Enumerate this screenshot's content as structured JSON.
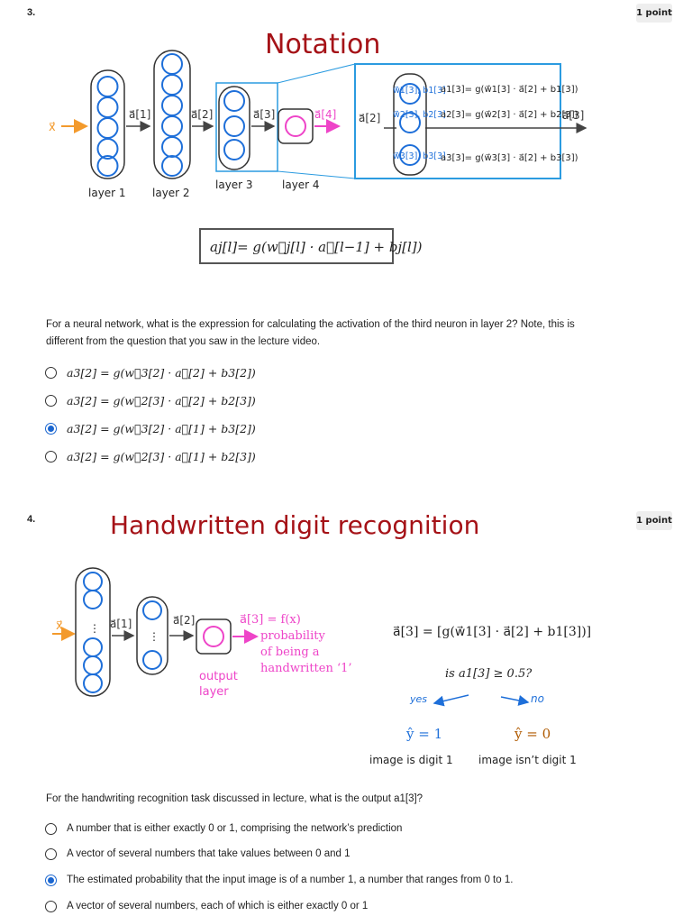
{
  "q3": {
    "number": "3.",
    "points": "1 point",
    "slide_title": "Notation",
    "diagram": {
      "input": "x⃗",
      "arrow_labels": [
        "a⃗[1]",
        "a⃗[2]",
        "a⃗[3]",
        "a⃗[4]"
      ],
      "layer_labels": [
        "layer 1",
        "layer 2",
        "layer 3",
        "layer 4"
      ],
      "zoom_left_label": "a⃗[2]",
      "zoom_right_label": "a⃗[3]",
      "params": [
        "w⃗1[3], b1[3]",
        "w⃗2[3], b2[3]",
        "w⃗3[3], b3[3]"
      ],
      "equations": [
        "a1[3]= g(w⃗1[3] · a⃗[2] + b1[3])",
        "a2[3]= g(w⃗2[3] · a⃗[2] + b2[3])",
        "a3[3]= g(w⃗3[3] · a⃗[2] + b3[3])"
      ],
      "general_formula": "aj[l]= g(w⃗j[l] · a⃗[l−1] + bj[l])"
    },
    "prompt": "For a neural network, what is the expression for calculating the activation of the third neuron in layer 2? Note, this is different from the question that you saw in the lecture video.",
    "options": [
      {
        "text": "a3[2] = g(w⃗3[2] · a⃗[2] + b3[2])",
        "selected": false
      },
      {
        "text": "a3[2] = g(w⃗2[3] · a⃗[2] + b2[3])",
        "selected": false
      },
      {
        "text": "a3[2] = g(w⃗3[2] · a⃗[1] + b3[2])",
        "selected": true
      },
      {
        "text": "a3[2] = g(w⃗2[3] · a⃗[1] + b2[3])",
        "selected": false
      }
    ]
  },
  "q4": {
    "number": "4.",
    "points": "1 point",
    "slide_title": "Handwritten digit recognition",
    "diagram": {
      "input": "x⃗",
      "arrow_labels": [
        "a⃗[1]",
        "a⃗[2]"
      ],
      "output_label": "a⃗[3] = f(x)",
      "prob_lines": [
        "probability",
        "of being a",
        "handwritten ‘1’"
      ],
      "output_layer_lines": [
        "output",
        "layer"
      ],
      "formula": "a⃗[3] = [g(w⃗1[3] · a⃗[2] + b1[3])]",
      "question": "is a1[3] ≥ 0.5?",
      "yes": "yes",
      "no": "no",
      "yhat_yes": "ŷ = 1",
      "yhat_no": "ŷ = 0",
      "caption_yes": "image is digit 1",
      "caption_no": "image isn’t digit 1"
    },
    "prompt": "For the handwriting recognition task discussed in lecture, what is the output a1[3]?",
    "options": [
      {
        "text": "A number that is either exactly 0 or 1, comprising the network’s prediction",
        "selected": false
      },
      {
        "text": "A vector of several numbers that take values between 0 and 1",
        "selected": false
      },
      {
        "text": "The estimated probability that the input image is of a number 1, a number that ranges from 0 to 1.",
        "selected": true
      },
      {
        "text": "A vector of several numbers, each of which is either exactly 0 or 1",
        "selected": false
      }
    ]
  },
  "colors": {
    "title": "#a51217",
    "neuron": "#1e6fd9",
    "box": "#2b9be0",
    "output": "#ee44c8",
    "input": "#f39a2c",
    "radio": "#1a66d0"
  }
}
